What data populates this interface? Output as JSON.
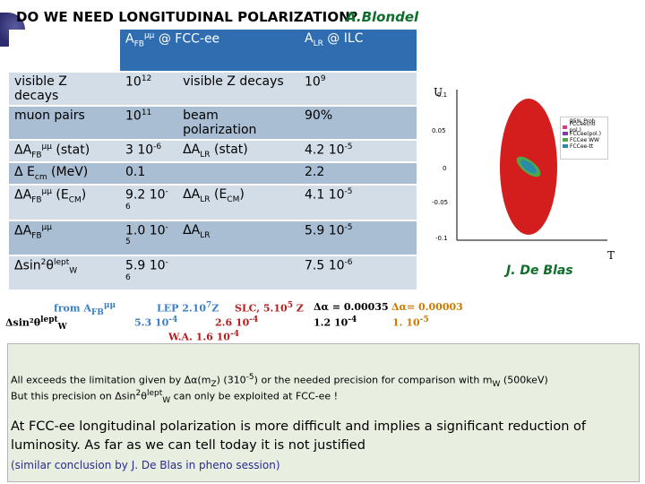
{
  "title": "DO WE NEED LONGITUDINAL POLARIZATION?",
  "author": "A.Blondel",
  "table": {
    "header": {
      "afb_label": "A",
      "afb_sub": "FB",
      "afb_sup": "μμ",
      "afb_suffix": " @ FCC-ee",
      "alr_label": "A",
      "alr_sub": "LR",
      "alr_suffix": " @ ILC"
    },
    "rows": [
      {
        "c1": "visible Z decays",
        "c2": "10",
        "c2_sup": "12",
        "c3": "visible Z decays",
        "c4": "10",
        "c4_sup": "9"
      },
      {
        "c1": "muon pairs",
        "c2": "10",
        "c2_sup": "11",
        "c3": "beam polarization",
        "c4": "90%"
      },
      {
        "c1_pre": "ΔA",
        "c1_sub": "FB",
        "c1_sup": "μμ",
        "c1_post": " (stat)",
        "c2": "3 10",
        "c2_sup": "-6",
        "c3_pre": "ΔA",
        "c3_sub": "LR",
        "c3_post": " (stat)",
        "c4": "4.2 10",
        "c4_sup": "-5"
      },
      {
        "c1_pre": "Δ E",
        "c1_sub": "cm",
        "c1_post": " (MeV)",
        "c2": "0.1",
        "c4": "2.2"
      },
      {
        "c1_pre": "ΔA",
        "c1_sub": "FB",
        "c1_sup": "μμ",
        "c1_post": " (E",
        "c1_sub2": "CM",
        "c1_post2": ")",
        "c2": "9.2 10",
        "c2_sup": "-6",
        "c3_pre": "ΔA",
        "c3_sub": "LR",
        "c3_post": " (E",
        "c3_sub2": "CM",
        "c3_post2": ")",
        "c4": "4.1 10",
        "c4_sup": "-5"
      },
      {
        "c1_pre": "ΔA",
        "c1_sub": "FB",
        "c1_sup": "μμ",
        "c2": "1.0 10",
        "c2_sup": "-5",
        "c3_pre": "ΔA",
        "c3_sub": "LR",
        "c4": "5.9 10",
        "c4_sup": "-5"
      },
      {
        "c1_pre": "Δsin",
        "c1_sup": "2",
        "c1_post": "θ",
        "c1_sup2": "lept",
        "c1_sub": "W",
        "c2": "5.9 10",
        "c2_sup": "-6",
        "c4": "7.5 10",
        "c4_sup": "-6"
      }
    ]
  },
  "overlay": {
    "from": "from A",
    "from_sub": "FB",
    "from_sup": "μμ",
    "lep": "LEP 2.10",
    "lep_sup": "7",
    "lep_z": "Z",
    "slc": "SLC, 5.10",
    "slc_sup": "5",
    "slc_z": " Z",
    "da_blue": "Δα = 0.00035",
    "da_red": "Δα= 0.00003",
    "dsin_label": "Δsin²θ",
    "dsin_sup": "lept",
    "dsin_sub": "W",
    "v1": "5.3 10",
    "v1_sup": "-4",
    "v2": "2.6 10",
    "v2_sup": "-4",
    "v3": "1.2 10",
    "v3_sup": "-4",
    "v4": "1. 10",
    "v4_sup": "-5",
    "wa": "W.A. 1.6 10",
    "wa_sup": "-4"
  },
  "plot": {
    "y_axis_label": "U",
    "x_axis_label": "T",
    "y_ticks": [
      "0.1",
      "0.05",
      "0",
      "-0.05",
      "-0.1"
    ],
    "legend": [
      "95% Prob",
      "FCCee(no pol.)",
      "FCCee(pol.)",
      "FCCee WW",
      "FCCee-tt"
    ],
    "legend_colors": [
      "#ffffff",
      "#c9447a",
      "#7a3ab0",
      "#4da84a",
      "#2a8ba8"
    ],
    "ellipse_color": "#d41e1e",
    "credit": "J. De Blas"
  },
  "box": {
    "line1": "All exceeds the limitation given by Δα(m",
    "line1_sub": "Z",
    "line1_b": ") (310",
    "line1_sup": "-5",
    "line1_c": ") or the needed precision for comparison with m",
    "line1_sub2": "W",
    "line1_d": " (500keV)",
    "line2_a": "But this precision on Δsin",
    "line2_sup": "2",
    "line2_b": "θ",
    "line2_sup2": "lept",
    "line2_sub": "W",
    "line2_c": " can only be exploited at FCC-ee !",
    "line3": "At FCC-ee longitudinal polarization is more difficult and implies a significant reduction of luminosity.  As far as we can tell today it is  not justified",
    "line4": "(similar conclusion by J. De Blas in pheno session)"
  }
}
